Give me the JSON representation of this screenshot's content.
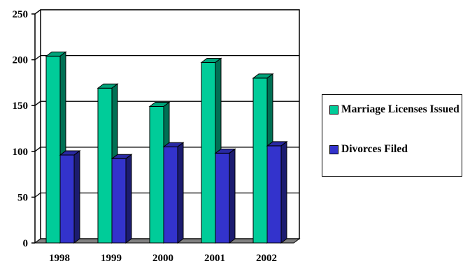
{
  "chart_data": {
    "type": "bar",
    "categories": [
      "1998",
      "1999",
      "2000",
      "2001",
      "2002"
    ],
    "series": [
      {
        "name": "Marriage Licenses Issued",
        "values": [
          204,
          169,
          149,
          197,
          180
        ],
        "color": "#00cc99"
      },
      {
        "name": "Divorces Filed",
        "values": [
          96,
          92,
          105,
          98,
          106
        ],
        "color": "#3333cc"
      }
    ],
    "yticks": [
      0,
      50,
      100,
      150,
      200,
      250
    ],
    "ylim": [
      0,
      250
    ],
    "grid": true,
    "legend_position": "right",
    "three_d": true
  }
}
